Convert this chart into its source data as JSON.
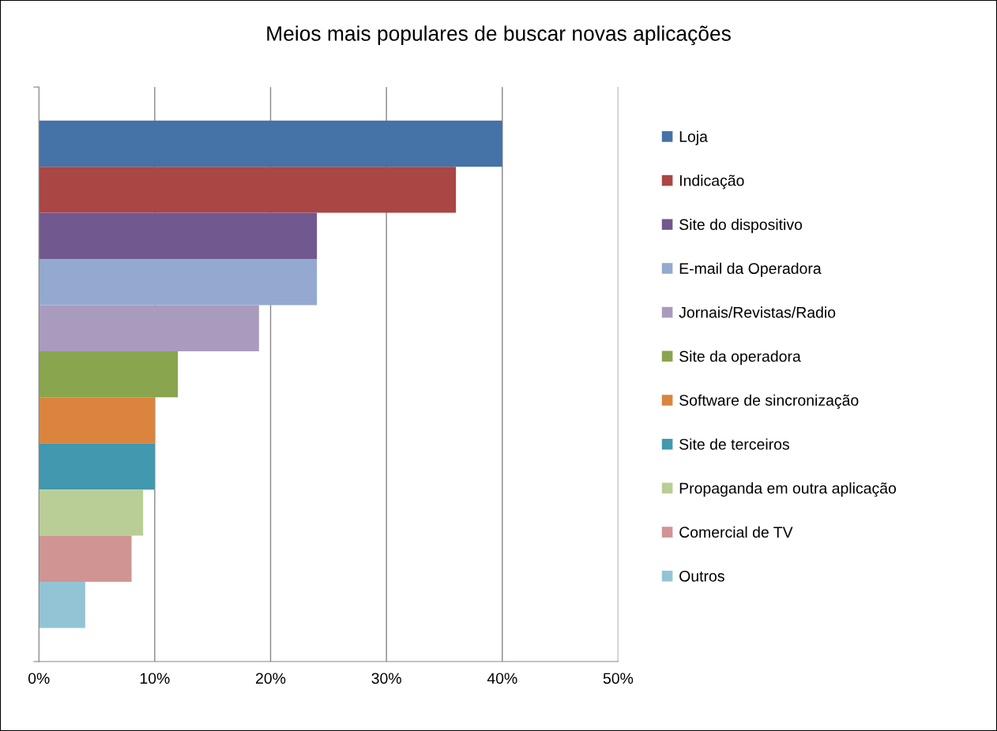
{
  "chart_data": {
    "type": "bar",
    "orientation": "horizontal",
    "title": "Meios mais populares de buscar novas aplicações",
    "categories": [
      null
    ],
    "series": [
      {
        "name": "Loja",
        "color": "#4572a7",
        "values": [
          40
        ]
      },
      {
        "name": "Indicação",
        "color": "#aa4643",
        "values": [
          36
        ]
      },
      {
        "name": "Site do dispositivo",
        "color": "#71588f",
        "values": [
          24
        ]
      },
      {
        "name": "E-mail da Operadora",
        "color": "#93a9cf",
        "values": [
          24
        ]
      },
      {
        "name": "Jornais/Revistas/Radio",
        "color": "#a99bbd",
        "values": [
          19
        ]
      },
      {
        "name": "Site da operadora",
        "color": "#89a54e",
        "values": [
          12
        ]
      },
      {
        "name": "Software de sincronização",
        "color": "#db843d",
        "values": [
          10
        ]
      },
      {
        "name": "Site de terceiros",
        "color": "#4198af",
        "values": [
          10
        ]
      },
      {
        "name": "Propaganda em outra aplicação",
        "color": "#b9cd96",
        "values": [
          9
        ]
      },
      {
        "name": "Comercial de TV",
        "color": "#d09493",
        "values": [
          8
        ]
      },
      {
        "name": "Outros",
        "color": "#93c4d5",
        "values": [
          4
        ]
      }
    ],
    "xlim": [
      0,
      50
    ],
    "xticks": [
      {
        "value": 0,
        "label": "0%"
      },
      {
        "value": 10,
        "label": "10%"
      },
      {
        "value": 20,
        "label": "20%"
      },
      {
        "value": 30,
        "label": "30%"
      },
      {
        "value": 40,
        "label": "40%"
      },
      {
        "value": 50,
        "label": "50%"
      }
    ],
    "grid": "x",
    "legend": "right"
  }
}
